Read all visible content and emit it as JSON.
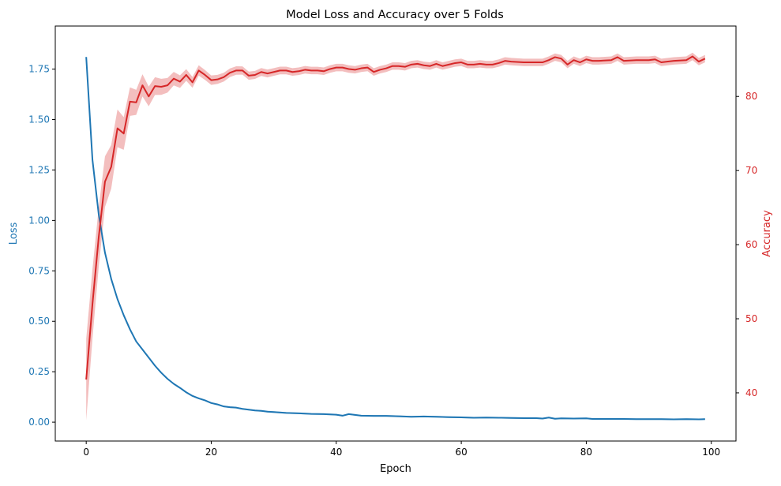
{
  "chart_data": {
    "type": "line",
    "title": "Model Loss and Accuracy over 5 Folds",
    "xlabel": "Epoch",
    "ylabel_left": "Loss",
    "ylabel_right": "Accuracy",
    "xlim": [
      -4.95,
      103.95
    ],
    "ylim_left": [
      -0.0935,
      1.9635
    ],
    "ylim_right": [
      33.5,
      89.5
    ],
    "xticks": [
      "0",
      "20",
      "40",
      "60",
      "80",
      "100"
    ],
    "yticks_left": [
      "0.00",
      "0.25",
      "0.50",
      "0.75",
      "1.00",
      "1.25",
      "1.50",
      "1.75"
    ],
    "yticks_right": [
      "40",
      "50",
      "60",
      "70",
      "80"
    ],
    "grid": false,
    "colors": {
      "loss": "#1f77b4",
      "accuracy": "#d62728"
    },
    "series": [
      {
        "axis": "left",
        "color": "#1f77b4",
        "points": [
          [
            0,
            1.81
          ],
          [
            1,
            1.3
          ],
          [
            2,
            1.03
          ],
          [
            3,
            0.84
          ],
          [
            4,
            0.71
          ],
          [
            5,
            0.61
          ],
          [
            6,
            0.53
          ],
          [
            7,
            0.46
          ],
          [
            8,
            0.4
          ],
          [
            9,
            0.36
          ],
          [
            10,
            0.32
          ],
          [
            11,
            0.28
          ],
          [
            12,
            0.245
          ],
          [
            13,
            0.215
          ],
          [
            14,
            0.19
          ],
          [
            15,
            0.17
          ],
          [
            16,
            0.148
          ],
          [
            17,
            0.13
          ],
          [
            18,
            0.118
          ],
          [
            19,
            0.108
          ],
          [
            20,
            0.095
          ],
          [
            21,
            0.088
          ],
          [
            22,
            0.078
          ],
          [
            23,
            0.074
          ],
          [
            24,
            0.072
          ],
          [
            25,
            0.066
          ],
          [
            26,
            0.062
          ],
          [
            27,
            0.058
          ],
          [
            28,
            0.056
          ],
          [
            29,
            0.052
          ],
          [
            30,
            0.05
          ],
          [
            32,
            0.046
          ],
          [
            34,
            0.044
          ],
          [
            36,
            0.041
          ],
          [
            38,
            0.04
          ],
          [
            40,
            0.037
          ],
          [
            41,
            0.032
          ],
          [
            42,
            0.04
          ],
          [
            44,
            0.032
          ],
          [
            46,
            0.031
          ],
          [
            48,
            0.031
          ],
          [
            50,
            0.029
          ],
          [
            52,
            0.027
          ],
          [
            54,
            0.028
          ],
          [
            56,
            0.027
          ],
          [
            58,
            0.025
          ],
          [
            60,
            0.024
          ],
          [
            62,
            0.022
          ],
          [
            64,
            0.023
          ],
          [
            66,
            0.022
          ],
          [
            68,
            0.021
          ],
          [
            70,
            0.02
          ],
          [
            72,
            0.02
          ],
          [
            73,
            0.018
          ],
          [
            74,
            0.023
          ],
          [
            75,
            0.017
          ],
          [
            76,
            0.019
          ],
          [
            78,
            0.018
          ],
          [
            80,
            0.019
          ],
          [
            81,
            0.016
          ],
          [
            82,
            0.016
          ],
          [
            84,
            0.016
          ],
          [
            86,
            0.016
          ],
          [
            88,
            0.015
          ],
          [
            90,
            0.015
          ],
          [
            92,
            0.015
          ],
          [
            94,
            0.014
          ],
          [
            96,
            0.015
          ],
          [
            98,
            0.014
          ],
          [
            99,
            0.015
          ]
        ],
        "band": [
          0.006,
          0.004
        ]
      },
      {
        "axis": "right",
        "color": "#d62728",
        "points": [
          [
            0,
            41.8
          ],
          [
            1,
            52.0
          ],
          [
            2,
            61.0
          ],
          [
            3,
            68.5
          ],
          [
            4,
            70.5
          ],
          [
            5,
            75.7
          ],
          [
            6,
            75.0
          ],
          [
            7,
            79.3
          ],
          [
            8,
            79.2
          ],
          [
            9,
            81.5
          ],
          [
            10,
            80.0
          ],
          [
            11,
            81.4
          ],
          [
            12,
            81.3
          ],
          [
            13,
            81.5
          ],
          [
            14,
            82.4
          ],
          [
            15,
            82.0
          ],
          [
            16,
            82.9
          ],
          [
            17,
            81.9
          ],
          [
            18,
            83.5
          ],
          [
            19,
            82.9
          ],
          [
            20,
            82.2
          ],
          [
            21,
            82.3
          ],
          [
            22,
            82.6
          ],
          [
            23,
            83.2
          ],
          [
            24,
            83.5
          ],
          [
            25,
            83.5
          ],
          [
            26,
            82.8
          ],
          [
            27,
            82.9
          ],
          [
            28,
            83.3
          ],
          [
            29,
            83.1
          ],
          [
            30,
            83.3
          ],
          [
            31,
            83.5
          ],
          [
            32,
            83.5
          ],
          [
            33,
            83.3
          ],
          [
            34,
            83.4
          ],
          [
            35,
            83.6
          ],
          [
            36,
            83.5
          ],
          [
            37,
            83.5
          ],
          [
            38,
            83.4
          ],
          [
            39,
            83.7
          ],
          [
            40,
            83.9
          ],
          [
            41,
            83.9
          ],
          [
            42,
            83.7
          ],
          [
            43,
            83.6
          ],
          [
            44,
            83.8
          ],
          [
            45,
            83.9
          ],
          [
            46,
            83.3
          ],
          [
            47,
            83.6
          ],
          [
            48,
            83.8
          ],
          [
            49,
            84.1
          ],
          [
            50,
            84.1
          ],
          [
            51,
            84.0
          ],
          [
            52,
            84.3
          ],
          [
            53,
            84.4
          ],
          [
            54,
            84.2
          ],
          [
            55,
            84.1
          ],
          [
            56,
            84.4
          ],
          [
            57,
            84.1
          ],
          [
            58,
            84.3
          ],
          [
            59,
            84.5
          ],
          [
            60,
            84.6
          ],
          [
            61,
            84.3
          ],
          [
            62,
            84.3
          ],
          [
            63,
            84.4
          ],
          [
            64,
            84.3
          ],
          [
            65,
            84.3
          ],
          [
            66,
            84.5
          ],
          [
            67,
            84.8
          ],
          [
            68,
            84.7
          ],
          [
            70,
            84.6
          ],
          [
            72,
            84.6
          ],
          [
            73,
            84.6
          ],
          [
            74,
            84.9
          ],
          [
            75,
            85.3
          ],
          [
            76,
            85.1
          ],
          [
            77,
            84.3
          ],
          [
            78,
            84.9
          ],
          [
            79,
            84.6
          ],
          [
            80,
            85.0
          ],
          [
            81,
            84.8
          ],
          [
            82,
            84.8
          ],
          [
            84,
            84.9
          ],
          [
            85,
            85.3
          ],
          [
            86,
            84.8
          ],
          [
            88,
            84.9
          ],
          [
            90,
            84.9
          ],
          [
            91,
            85.0
          ],
          [
            92,
            84.6
          ],
          [
            94,
            84.8
          ],
          [
            96,
            84.9
          ],
          [
            97,
            85.4
          ],
          [
            98,
            84.7
          ],
          [
            99,
            85.1
          ]
        ],
        "band": [
          5.5,
          0.5
        ]
      }
    ]
  }
}
